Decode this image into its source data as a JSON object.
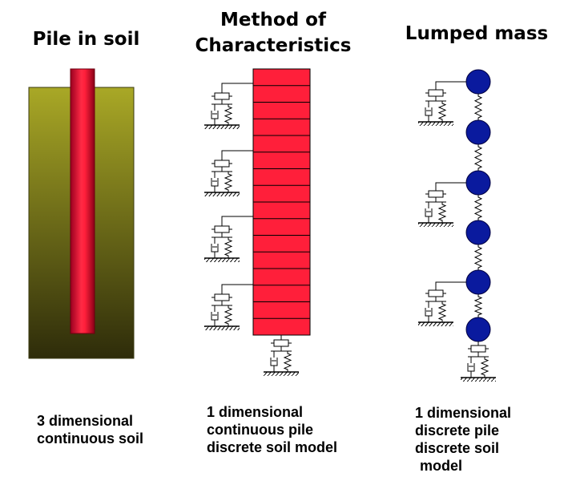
{
  "panels": [
    {
      "title_lines": [
        "Pile in soil"
      ],
      "caption_lines": [
        "3 dimensional",
        "continuous soil"
      ]
    },
    {
      "title_lines": [
        "Method of",
        "Characteristics"
      ],
      "caption_lines": [
        "1 dimensional",
        "continuous pile",
        "discrete soil model"
      ]
    },
    {
      "title_lines": [
        "Lumped mass"
      ],
      "caption_lines": [
        "1 dimensional",
        "discrete pile",
        "discrete soil",
        "model"
      ]
    }
  ],
  "colors": {
    "soil_top": "#a9a826",
    "soil_bottom": "#2e2c0a",
    "pile_red": "#ff1f3a",
    "pile_dark": "#9a0020",
    "mass_blue": "#0a1a9e",
    "line": "#000000"
  }
}
